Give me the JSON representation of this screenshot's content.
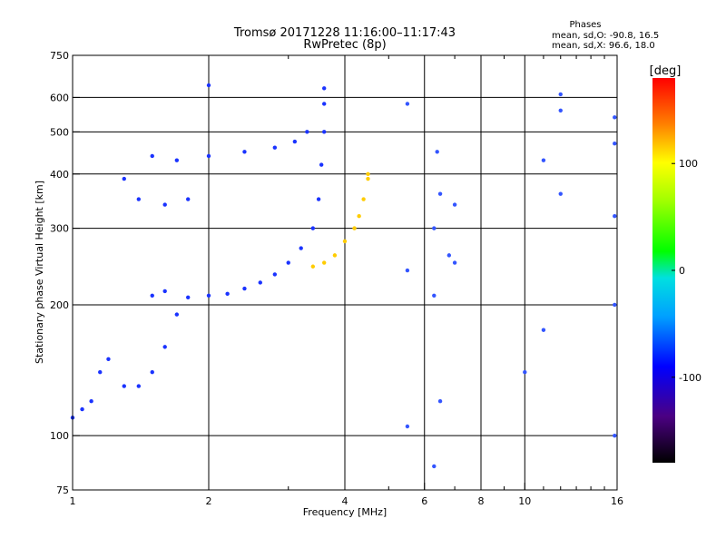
{
  "chart_data": {
    "type": "scatter",
    "title": "Tromsø 20171228 11:16:00–11:17:43",
    "subtitle": "RwPretec (8p)",
    "xlabel": "Frequency [MHz]",
    "ylabel": "Stationary phase Virtual Height [km]",
    "x_scale": "log",
    "y_scale": "log",
    "xlim": [
      1,
      16
    ],
    "ylim": [
      75,
      750
    ],
    "x_ticks": [
      1,
      2,
      4,
      6,
      8,
      10,
      16
    ],
    "x_minor_ticks": [
      3,
      5,
      7,
      9,
      11,
      12,
      13,
      14,
      15
    ],
    "y_ticks": [
      75,
      100,
      200,
      300,
      400,
      500,
      600,
      750
    ],
    "grid_x": [
      2,
      4,
      6,
      8,
      10
    ],
    "grid_y": [
      100,
      200,
      300,
      400,
      500,
      600
    ],
    "phases": {
      "heading": "Phases",
      "line_o": "mean, sd,O: -90.8, 16.5",
      "line_x": "mean, sd,X:  96.6, 18.0"
    },
    "colorbar": {
      "label": "[deg]",
      "range": [
        -180,
        180
      ],
      "ticks": [
        100,
        0,
        -100
      ]
    },
    "o_trace": [
      {
        "f": 1.0,
        "h": 110
      },
      {
        "f": 1.05,
        "h": 115
      },
      {
        "f": 1.1,
        "h": 120
      },
      {
        "f": 1.15,
        "h": 140
      },
      {
        "f": 1.2,
        "h": 150
      },
      {
        "f": 1.3,
        "h": 130
      },
      {
        "f": 1.4,
        "h": 130
      },
      {
        "f": 1.5,
        "h": 140
      },
      {
        "f": 1.6,
        "h": 160
      },
      {
        "f": 1.7,
        "h": 190
      },
      {
        "f": 1.5,
        "h": 210
      },
      {
        "f": 1.6,
        "h": 215
      },
      {
        "f": 1.8,
        "h": 208
      },
      {
        "f": 2.0,
        "h": 210
      },
      {
        "f": 2.2,
        "h": 212
      },
      {
        "f": 2.4,
        "h": 218
      },
      {
        "f": 2.6,
        "h": 225
      },
      {
        "f": 2.8,
        "h": 235
      },
      {
        "f": 3.0,
        "h": 250
      },
      {
        "f": 3.2,
        "h": 270
      },
      {
        "f": 3.4,
        "h": 300
      },
      {
        "f": 3.5,
        "h": 350
      },
      {
        "f": 3.55,
        "h": 420
      },
      {
        "f": 3.6,
        "h": 500
      },
      {
        "f": 3.6,
        "h": 580
      },
      {
        "f": 3.6,
        "h": 630
      },
      {
        "f": 1.4,
        "h": 350
      },
      {
        "f": 1.6,
        "h": 340
      },
      {
        "f": 1.8,
        "h": 350
      },
      {
        "f": 1.3,
        "h": 390
      },
      {
        "f": 1.5,
        "h": 440
      },
      {
        "f": 1.7,
        "h": 430
      },
      {
        "f": 2.0,
        "h": 440
      },
      {
        "f": 2.4,
        "h": 450
      },
      {
        "f": 2.8,
        "h": 460
      },
      {
        "f": 3.1,
        "h": 475
      },
      {
        "f": 3.3,
        "h": 500
      },
      {
        "f": 2.0,
        "h": 640
      }
    ],
    "x_trace": [
      {
        "f": 3.4,
        "h": 245
      },
      {
        "f": 3.6,
        "h": 250
      },
      {
        "f": 3.8,
        "h": 260
      },
      {
        "f": 4.0,
        "h": 280
      },
      {
        "f": 4.2,
        "h": 300
      },
      {
        "f": 4.3,
        "h": 320
      },
      {
        "f": 4.4,
        "h": 350
      },
      {
        "f": 4.5,
        "h": 390
      },
      {
        "f": 4.5,
        "h": 400
      }
    ],
    "scattered": [
      {
        "f": 5.5,
        "h": 105
      },
      {
        "f": 5.5,
        "h": 240
      },
      {
        "f": 5.5,
        "h": 580
      },
      {
        "f": 6.3,
        "h": 85
      },
      {
        "f": 6.3,
        "h": 210
      },
      {
        "f": 6.3,
        "h": 300
      },
      {
        "f": 6.4,
        "h": 450
      },
      {
        "f": 6.5,
        "h": 120
      },
      {
        "f": 6.5,
        "h": 360
      },
      {
        "f": 6.8,
        "h": 260
      },
      {
        "f": 7.0,
        "h": 250
      },
      {
        "f": 7.0,
        "h": 340
      },
      {
        "f": 10.0,
        "h": 140
      },
      {
        "f": 11.0,
        "h": 175
      },
      {
        "f": 11.0,
        "h": 430
      },
      {
        "f": 12.0,
        "h": 360
      },
      {
        "f": 12.0,
        "h": 560
      },
      {
        "f": 12.0,
        "h": 610
      },
      {
        "f": 15.8,
        "h": 100
      },
      {
        "f": 15.8,
        "h": 200
      },
      {
        "f": 15.8,
        "h": 320
      },
      {
        "f": 15.8,
        "h": 470
      },
      {
        "f": 15.8,
        "h": 540
      }
    ]
  }
}
